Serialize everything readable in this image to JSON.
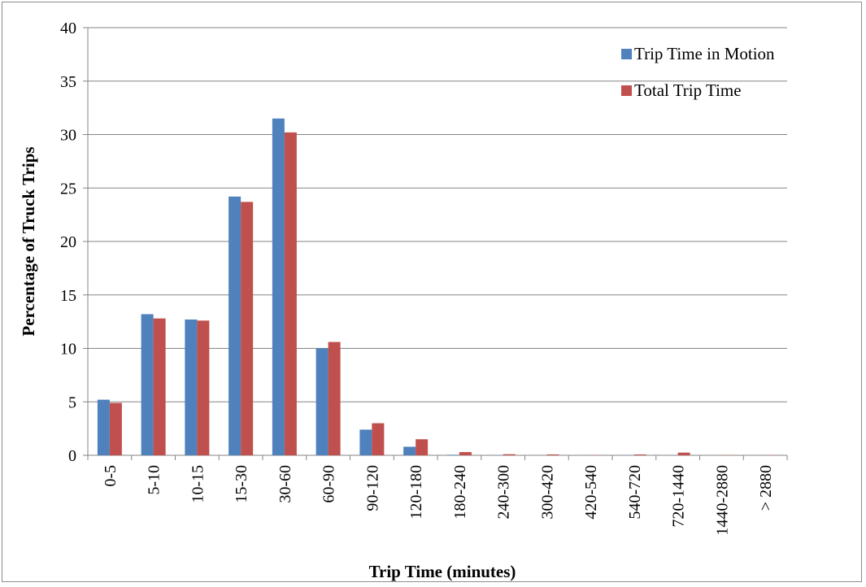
{
  "chart_data": {
    "type": "bar",
    "title": "",
    "xlabel": "Trip Time (minutes)",
    "ylabel": "Percentage of Truck Trips",
    "ylim": [
      0,
      40
    ],
    "yticks": [
      0,
      5,
      10,
      15,
      20,
      25,
      30,
      35,
      40
    ],
    "grid": "horizontal",
    "legend_position": "top-right",
    "categories": [
      "0-5",
      "5-10",
      "10-15",
      "15-30",
      "30-60",
      "60-90",
      "90-120",
      "120-180",
      "180-240",
      "240-300",
      "300-420",
      "420-540",
      "540-720",
      "720-1440",
      "1440-2880",
      "> 2880"
    ],
    "series": [
      {
        "name": "Trip Time in Motion",
        "color": "#4f81bd",
        "values": [
          5.2,
          13.2,
          12.7,
          24.2,
          31.5,
          10.0,
          2.4,
          0.8,
          0.05,
          0.02,
          0.01,
          0.0,
          0.01,
          0.01,
          0.0,
          0.0
        ]
      },
      {
        "name": "Total Trip Time",
        "color": "#c0504d",
        "values": [
          4.9,
          12.8,
          12.6,
          23.7,
          30.2,
          10.6,
          3.0,
          1.5,
          0.3,
          0.1,
          0.08,
          0.02,
          0.08,
          0.25,
          0.02,
          0.02
        ]
      }
    ]
  }
}
